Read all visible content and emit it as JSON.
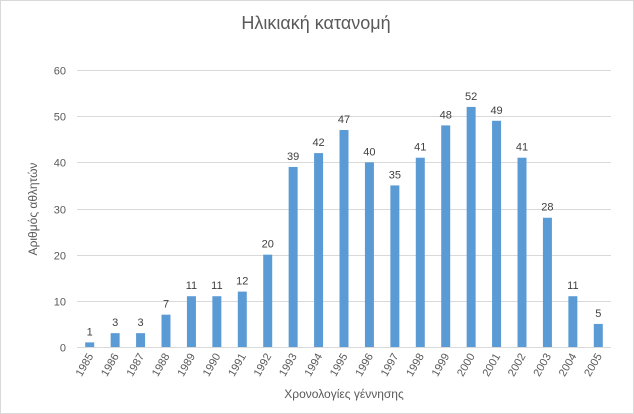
{
  "chart_data": {
    "type": "bar",
    "title": "Ηλικιακή κατανομή",
    "xlabel": "Χρονολογίες γέννησης",
    "ylabel": "Αριθμός αθλητών",
    "categories": [
      "1985",
      "1986",
      "1987",
      "1988",
      "1989",
      "1990",
      "1991",
      "1992",
      "1993",
      "1994",
      "1995",
      "1996",
      "1997",
      "1998",
      "1999",
      "2000",
      "2001",
      "2002",
      "2003",
      "2004",
      "2005"
    ],
    "values": [
      1,
      3,
      3,
      7,
      11,
      11,
      12,
      20,
      39,
      42,
      47,
      40,
      35,
      41,
      48,
      52,
      49,
      41,
      28,
      11,
      5
    ],
    "ylim": [
      0,
      60
    ],
    "yticks": [
      0,
      10,
      20,
      30,
      40,
      50,
      60
    ],
    "grid": true,
    "legend": "none",
    "data_labels": true,
    "colors": {
      "bar": "#5b9bd5",
      "grid": "#d9d9d9",
      "text": "#595959",
      "label": "#404040"
    }
  }
}
